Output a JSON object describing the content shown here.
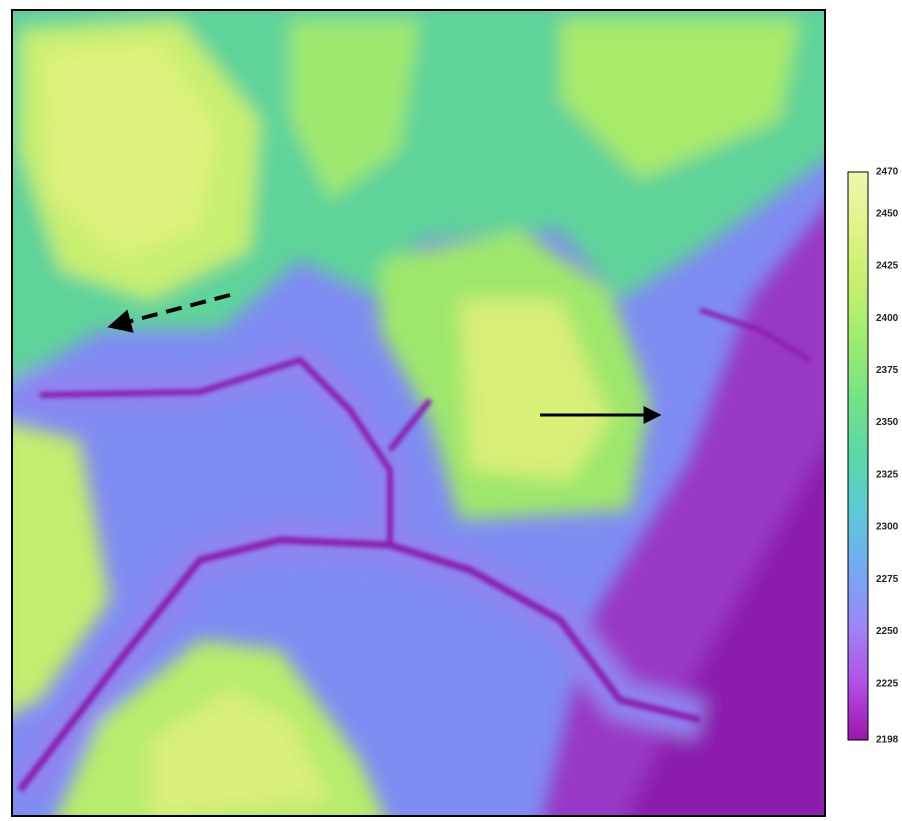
{
  "colorbar": {
    "range": [
      2198,
      2470
    ],
    "ticks": [
      2470,
      2450,
      2425,
      2400,
      2375,
      2350,
      2325,
      2300,
      2275,
      2250,
      2225,
      2198
    ],
    "colors": [
      "#9a16ae",
      "#b44fe6",
      "#9d86f6",
      "#72aaf2",
      "#5ec9d6",
      "#5ad7a8",
      "#74e386",
      "#9ceb70",
      "#c4f06e",
      "#e0f386",
      "#f1f6ae"
    ]
  }
}
